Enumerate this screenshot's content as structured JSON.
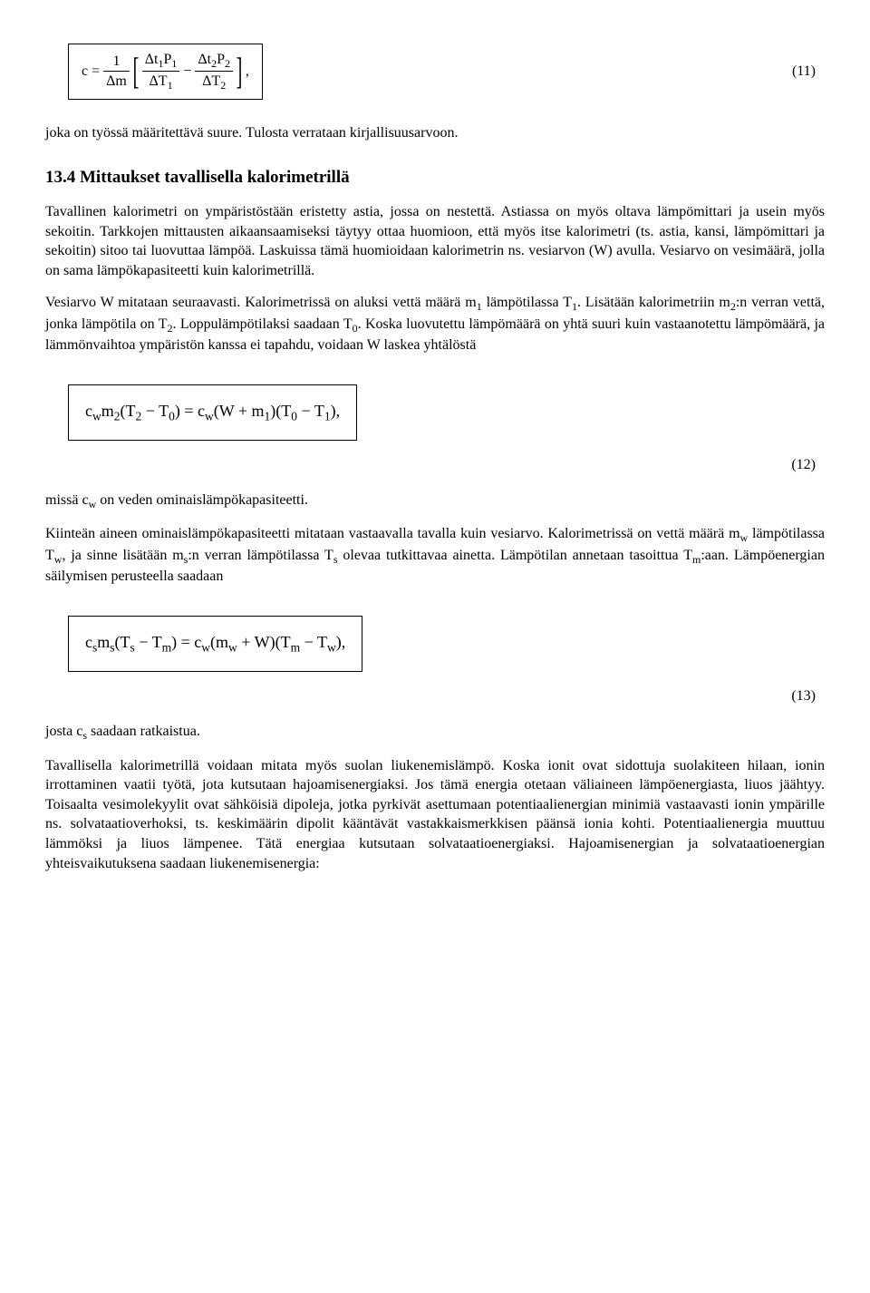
{
  "eq11": {
    "formula_html": "c = <span class='frac'><span class='num'>1</span><span class='den'>Δm</span></span><span class='bracket'>[</span><span class='frac'><span class='num'>Δt<sub>1</sub>P<sub>1</sub></span><span class='den'>ΔT<sub>1</sub></span></span> − <span class='frac'><span class='num'>Δt<sub>2</sub>P<sub>2</sub></span><span class='den'>ΔT<sub>2</sub></span></span><span class='bracket'>]</span>,",
    "num": "(11)"
  },
  "p_after_eq11": "joka on työssä määritettävä suure. Tulosta verrataan kirjallisuusarvoon.",
  "heading": "13.4  Mittaukset tavallisella kalorimetrillä",
  "p1": "Tavallinen kalorimetri on ympäristöstään eristetty astia, jossa on nestettä. Astiassa on myös oltava lämpömittari ja usein myös sekoitin. Tarkkojen mittausten aikaansaamiseksi täytyy ottaa huomioon, että myös itse kalorimetri (ts. astia, kansi, lämpömittari ja sekoitin) sitoo tai luovuttaa lämpöä. Laskuissa tämä huomioidaan kalorimetrin ns. vesiarvon (W) avulla. Vesiarvo on vesimäärä, jolla on sama lämpökapasiteetti kuin kalorimetrillä.",
  "p2_html": "Vesiarvo W mitataan seuraavasti. Kalorimetrissä on aluksi vettä määrä m<sub>1</sub> lämpötilassa T<sub>1</sub>. Lisätään kalorimetriin m<sub>2</sub>:n verran vettä, jonka lämpötila on T<sub>2</sub>. Loppulämpötilaksi saadaan T<sub>0</sub>. Koska luovutettu lämpömäärä on yhtä suuri kuin vastaanotettu lämpömäärä, ja lämmönvaihtoa ympäristön kanssa ei tapahdu, voidaan W laskea yhtälöstä",
  "eq12": {
    "formula_html": "c<sub>w</sub>m<sub>2</sub>(T<sub>2</sub> − T<sub>0</sub>) = c<sub>w</sub>(W + m<sub>1</sub>)(T<sub>0</sub> − T<sub>1</sub>),",
    "num": "(12)"
  },
  "p_after_eq12_html": "missä c<sub>w</sub> on veden ominaislämpökapasiteetti.",
  "p3_html": "Kiinteän aineen ominaislämpökapasiteetti mitataan vastaavalla tavalla kuin vesiarvo. Kalorimetrissä on vettä määrä m<sub>w</sub> lämpötilassa T<sub>w</sub>, ja sinne lisätään m<sub>s</sub>:n verran lämpötilassa T<sub>s</sub> olevaa tutkittavaa ainetta. Lämpötilan annetaan tasoittua T<sub>m</sub>:aan. Lämpöenergian säilymisen perusteella saadaan",
  "eq13": {
    "formula_html": "c<sub>s</sub>m<sub>s</sub>(T<sub>s</sub> − T<sub>m</sub>) = c<sub>w</sub>(m<sub>w</sub> + W)(T<sub>m</sub> − T<sub>w</sub>),",
    "num": "(13)"
  },
  "p_after_eq13_html": "josta c<sub>s</sub> saadaan ratkaistua.",
  "p4": "Tavallisella kalorimetrillä voidaan mitata myös suolan liukenemislämpö. Koska ionit ovat sidottuja suolakiteen hilaan, ionin irrottaminen vaatii työtä, jota kutsutaan hajoamisenergiaksi. Jos tämä energia otetaan väliaineen lämpöenergiasta, liuos jäähtyy. Toisaalta vesimolekyylit ovat sähköisiä dipoleja, jotka pyrkivät asettumaan potentiaalienergian minimiä vastaavasti ionin ympärille ns. solvataatioverhoksi, ts. keskimäärin dipolit kääntävät vastakkaismerkkisen päänsä ionia kohti. Potentiaalienergia muuttuu lämmöksi ja liuos lämpenee. Tätä energiaa kutsutaan solvataatioenergiaksi. Hajoamisenergian ja solvataatioenergian yhteisvaikutuksena saadaan liukenemisenergia:"
}
